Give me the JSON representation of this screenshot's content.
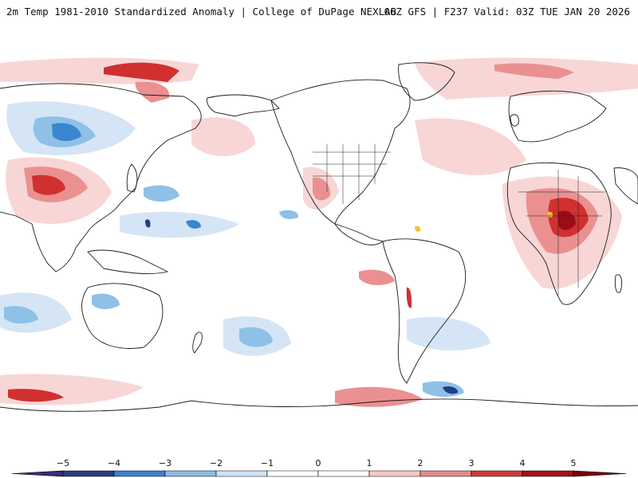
{
  "header": {
    "title_left": "2m Temp 1981-2010 Standardized Anomaly | College of DuPage NEXLAB",
    "title_right": "06Z GFS | F237 Valid: 03Z TUE JAN 20 2026"
  },
  "colorbar": {
    "tick_labels": [
      "−5",
      "−4",
      "−3",
      "−2",
      "−1",
      "0",
      "1",
      "2",
      "3",
      "4",
      "5"
    ],
    "colors": [
      "#3b2a7a",
      "#2a3f7a",
      "#3d7fd0",
      "#8bbbe6",
      "#cfe1f4",
      "#ffffff",
      "#ffffff",
      "#f6c9c9",
      "#e78a8a",
      "#d23a3a",
      "#a8101a",
      "#7a0010",
      "#f0c030"
    ]
  },
  "map": {
    "projection": "equirectangular",
    "center_longitude": 180,
    "lat_range": [
      -90,
      90
    ],
    "colors": {
      "light_blue": "#d5e5f5",
      "mid_blue": "#8ec0e8",
      "deep_blue": "#3a86cf",
      "navy": "#233f82",
      "light_red": "#f8d6d6",
      "mid_red": "#ea9090",
      "deep_red": "#d03030",
      "dark_red": "#9c0c18",
      "yellow": "#f2c02a",
      "coast": "#1a1a1a"
    }
  }
}
